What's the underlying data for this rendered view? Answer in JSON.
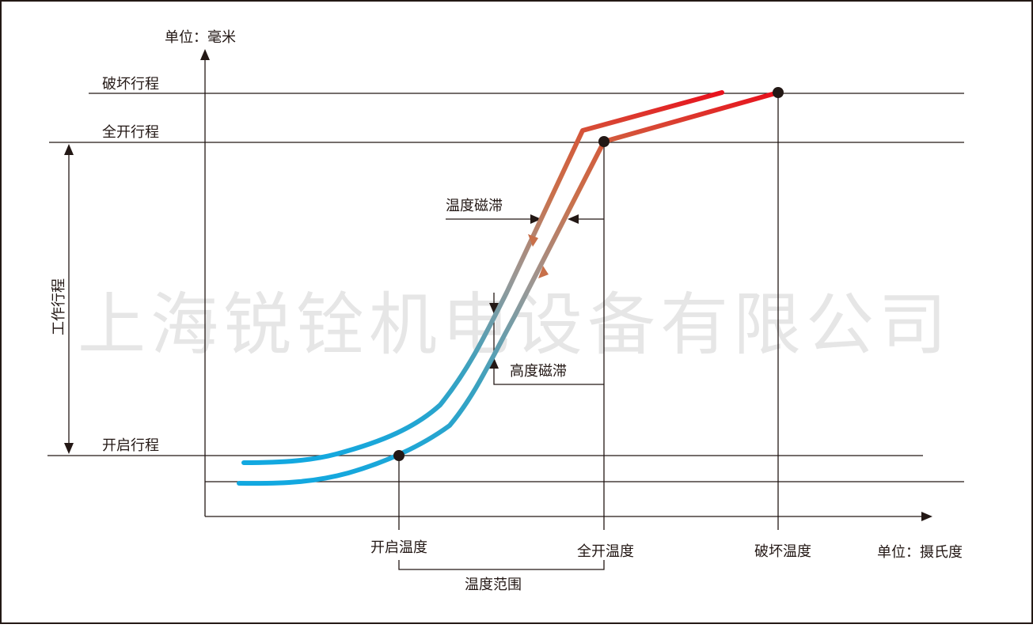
{
  "y_axis_unit": "单位：毫米",
  "x_axis_unit": "单位：摄氏度",
  "stroke_levels": {
    "damage": "破坏行程",
    "full_open": "全开行程",
    "opening": "开启行程"
  },
  "working_stroke": "工作行程",
  "temperatures": {
    "opening": "开启温度",
    "full_open": "全开温度",
    "damage": "破坏温度"
  },
  "temperature_range": "温度范围",
  "temperature_hysteresis": "温度磁滞",
  "height_hysteresis": "高度磁滞",
  "watermark": "上海锐铨机电设备有限公司",
  "colors": {
    "cold": "#1aa6dc",
    "mid": "#8a9aa0",
    "warm": "#c8704a",
    "hot": "#e8141e",
    "line": "#231815"
  }
}
